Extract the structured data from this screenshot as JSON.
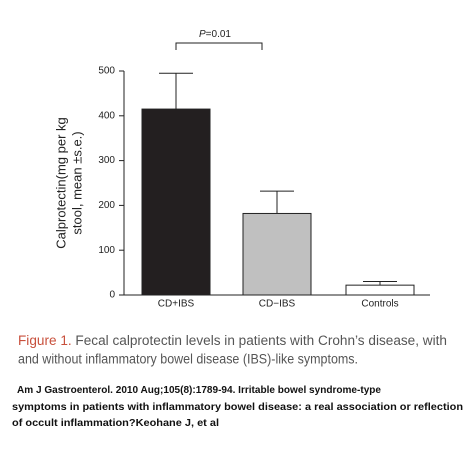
{
  "chart_data": {
    "type": "bar",
    "annotation": {
      "variable": "P",
      "text": "=0.01"
    },
    "ylabel": [
      "Calprotectin(mg per kg",
      "stool, mean ±s.e.)"
    ],
    "categories": [
      "CD+IBS",
      "CD−IBS",
      "Controls"
    ],
    "values": [
      415,
      182,
      22
    ],
    "errors": [
      80,
      50,
      8
    ],
    "colors": [
      "#231f20",
      "#c0c0c0",
      "#ffffff"
    ],
    "ylim": [
      0,
      500
    ],
    "yticks": [
      0,
      100,
      200,
      300,
      400,
      500
    ],
    "grid": false
  },
  "caption": {
    "label": "Figure 1.",
    "lines": [
      "Fecal calprotectin levels in patients with Crohn’s disease, with",
      "and without inflammatory bowel disease (IBS)-like symptoms."
    ]
  },
  "citation": [
    "Am J Gastroenterol. 2010 Aug;105(8):1789-94. Irritable bowel syndrome-type",
    "symptoms in patients with inflammatory bowel disease: a real association or reflection",
    "of occult inflammation?Keohane J, et al"
  ]
}
